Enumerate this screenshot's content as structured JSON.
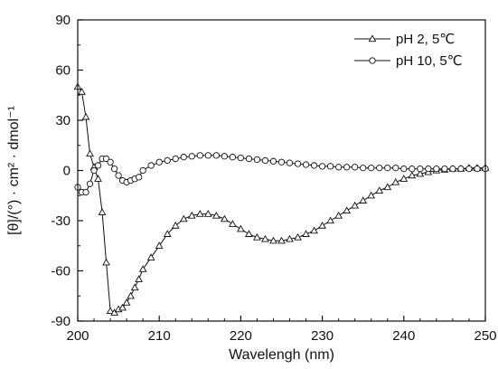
{
  "chart_data": {
    "type": "line",
    "xlabel": "Wavelengh (nm)",
    "ylabel": "[θ]/(°) · cm² · dmol⁻¹",
    "xlim": [
      200,
      250
    ],
    "ylim": [
      -90,
      90
    ],
    "xticks": [
      200,
      210,
      220,
      230,
      240,
      250
    ],
    "yticks": [
      -90,
      -60,
      -30,
      0,
      30,
      60,
      90
    ],
    "grid": false,
    "legend_position": "top-right",
    "series": [
      {
        "name": "pH 2, 5℃",
        "marker": "triangle",
        "points": [
          [
            200.0,
            50
          ],
          [
            200.5,
            47
          ],
          [
            201.0,
            32
          ],
          [
            201.5,
            10
          ],
          [
            202.0,
            2
          ],
          [
            202.5,
            -5
          ],
          [
            203.0,
            -25
          ],
          [
            203.5,
            -55
          ],
          [
            204.0,
            -84
          ],
          [
            204.5,
            -85
          ],
          [
            205.0,
            -83
          ],
          [
            205.5,
            -82
          ],
          [
            206.0,
            -79
          ],
          [
            206.5,
            -75
          ],
          [
            207.0,
            -70
          ],
          [
            207.5,
            -65
          ],
          [
            208.0,
            -59
          ],
          [
            209.0,
            -52
          ],
          [
            210.0,
            -45
          ],
          [
            211.0,
            -38
          ],
          [
            212.0,
            -33
          ],
          [
            213.0,
            -29
          ],
          [
            214.0,
            -27
          ],
          [
            215.0,
            -26
          ],
          [
            216.0,
            -26
          ],
          [
            217.0,
            -27
          ],
          [
            218.0,
            -29
          ],
          [
            219.0,
            -32
          ],
          [
            220.0,
            -35
          ],
          [
            221.0,
            -38
          ],
          [
            222.0,
            -40
          ],
          [
            223.0,
            -41
          ],
          [
            224.0,
            -42
          ],
          [
            225.0,
            -42
          ],
          [
            226.0,
            -41
          ],
          [
            227.0,
            -40
          ],
          [
            228.0,
            -38
          ],
          [
            229.0,
            -36
          ],
          [
            230.0,
            -33
          ],
          [
            231.0,
            -30
          ],
          [
            232.0,
            -27
          ],
          [
            233.0,
            -24
          ],
          [
            234.0,
            -21
          ],
          [
            235.0,
            -18
          ],
          [
            236.0,
            -15
          ],
          [
            237.0,
            -12
          ],
          [
            238.0,
            -10
          ],
          [
            239.0,
            -7
          ],
          [
            240.0,
            -5
          ],
          [
            241.0,
            -3
          ],
          [
            242.0,
            -2
          ],
          [
            243.0,
            -1
          ],
          [
            244.0,
            0
          ],
          [
            245.0,
            0.5
          ],
          [
            246.0,
            1
          ],
          [
            247.0,
            1
          ],
          [
            248.0,
            1.5
          ],
          [
            249.0,
            1.5
          ],
          [
            250.0,
            1.5
          ]
        ]
      },
      {
        "name": "pH 10, 5℃",
        "marker": "circle",
        "points": [
          [
            200.0,
            -10
          ],
          [
            200.5,
            -13
          ],
          [
            201.0,
            -13
          ],
          [
            201.5,
            -8
          ],
          [
            202.0,
            0
          ],
          [
            202.5,
            3
          ],
          [
            203.0,
            7
          ],
          [
            203.5,
            7
          ],
          [
            204.0,
            5
          ],
          [
            204.5,
            1
          ],
          [
            205.0,
            -3
          ],
          [
            205.5,
            -6
          ],
          [
            206.0,
            -7
          ],
          [
            206.5,
            -6
          ],
          [
            207.0,
            -5
          ],
          [
            207.5,
            -4
          ],
          [
            208.0,
            0
          ],
          [
            209.0,
            3
          ],
          [
            210.0,
            5
          ],
          [
            211.0,
            6
          ],
          [
            212.0,
            7
          ],
          [
            213.0,
            8
          ],
          [
            214.0,
            8.5
          ],
          [
            215.0,
            9
          ],
          [
            216.0,
            9
          ],
          [
            217.0,
            9
          ],
          [
            218.0,
            8.5
          ],
          [
            219.0,
            8
          ],
          [
            220.0,
            7.5
          ],
          [
            221.0,
            7
          ],
          [
            222.0,
            6.5
          ],
          [
            223.0,
            6
          ],
          [
            224.0,
            5.5
          ],
          [
            225.0,
            5
          ],
          [
            226.0,
            4.5
          ],
          [
            227.0,
            4
          ],
          [
            228.0,
            3.5
          ],
          [
            229.0,
            3
          ],
          [
            230.0,
            2.5
          ],
          [
            231.0,
            2.5
          ],
          [
            232.0,
            2
          ],
          [
            233.0,
            2
          ],
          [
            234.0,
            2
          ],
          [
            235.0,
            1.5
          ],
          [
            236.0,
            1.5
          ],
          [
            237.0,
            1.5
          ],
          [
            238.0,
            1.5
          ],
          [
            239.0,
            1.5
          ],
          [
            240.0,
            1
          ],
          [
            241.0,
            1
          ],
          [
            242.0,
            1
          ],
          [
            243.0,
            1
          ],
          [
            244.0,
            1
          ],
          [
            245.0,
            1
          ],
          [
            246.0,
            1
          ],
          [
            247.0,
            1
          ],
          [
            248.0,
            1
          ],
          [
            249.0,
            1
          ],
          [
            250.0,
            1
          ]
        ]
      }
    ]
  }
}
